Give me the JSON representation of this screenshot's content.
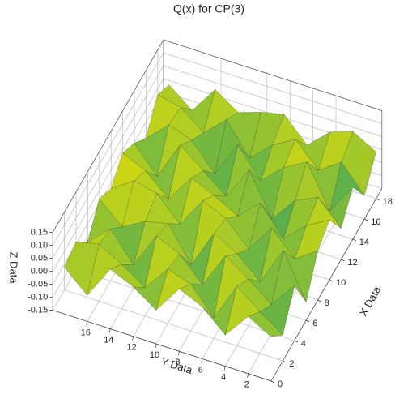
{
  "chart_data": {
    "type": "surface",
    "title": "Q(x) for CP(3)",
    "x_label": "X Data",
    "y_label": "Y Data",
    "z_label": "Z Data",
    "x": [
      0,
      2,
      4,
      6,
      8,
      10,
      12,
      14,
      16,
      18
    ],
    "y": [
      0,
      2,
      4,
      6,
      8,
      10,
      12,
      14,
      16,
      18
    ],
    "z": [
      [
        0.02,
        -0.05,
        0.06,
        -0.08,
        0.04,
        0.08,
        -0.03,
        0.05,
        -0.06,
        0.03
      ],
      [
        0.07,
        0.01,
        -0.04,
        0.09,
        -0.02,
        0.03,
        0.06,
        -0.07,
        0.04,
        0.08
      ],
      [
        -0.03,
        0.08,
        0.03,
        -0.06,
        0.07,
        -0.05,
        0.02,
        0.09,
        -0.02,
        0.05
      ],
      [
        0.05,
        -0.07,
        0.09,
        0.02,
        -0.04,
        0.06,
        -0.08,
        0.04,
        0.07,
        -0.03
      ],
      [
        0.09,
        0.03,
        -0.05,
        0.07,
        0.05,
        -0.02,
        0.08,
        -0.04,
        0.02,
        0.06
      ],
      [
        -0.02,
        0.06,
        0.04,
        -0.08,
        0.09,
        0.03,
        -0.05,
        0.07,
        -0.06,
        0.04
      ],
      [
        0.04,
        -0.04,
        0.08,
        0.05,
        -0.03,
        0.07,
        0.02,
        -0.07,
        0.06,
        0.01
      ],
      [
        0.08,
        0.02,
        -0.06,
        0.03,
        0.06,
        -0.04,
        0.09,
        0.03,
        -0.02,
        0.07
      ],
      [
        -0.05,
        0.07,
        0.05,
        -0.02,
        0.08,
        0.04,
        -0.06,
        0.06,
        0.05,
        -0.04
      ],
      [
        0.03,
        0.05,
        -0.03,
        0.06,
        0.02,
        0.08,
        0.04,
        -0.02,
        0.07,
        0.03
      ]
    ],
    "xlim": [
      0,
      19
    ],
    "ylim": [
      0,
      19
    ],
    "zlim": [
      -0.15,
      0.15
    ],
    "xticks": [
      0,
      2,
      4,
      6,
      8,
      10,
      12,
      14,
      16,
      18
    ],
    "yticks": [
      2,
      4,
      6,
      8,
      10,
      12,
      14,
      16
    ],
    "zticks": [
      0.15,
      {
        "value": 0.1,
        "label": "0.10"
      },
      0.05,
      {
        "value": 0,
        "label": "0.00"
      },
      -0.05,
      {
        "value": -0.1,
        "label": "-0.10"
      },
      -0.15
    ],
    "colormap": [
      "#1170a8",
      "#30a060",
      "#b8d020",
      "#f0e000"
    ],
    "grid": true
  }
}
